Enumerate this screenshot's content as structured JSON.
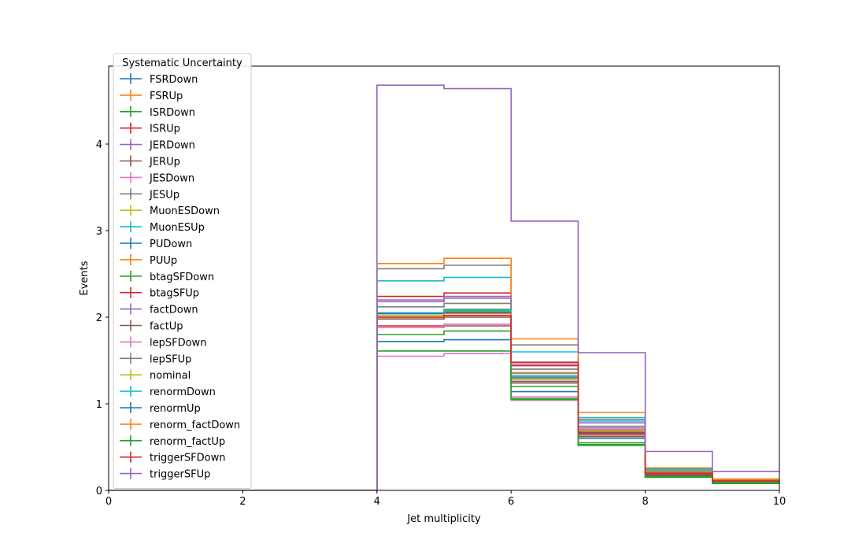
{
  "chart_data": {
    "type": "line",
    "style": "step-histogram",
    "xlabel": "Jet multiplicity",
    "ylabel": "Events",
    "xlim": [
      0,
      10
    ],
    "ylim": [
      0,
      4.9
    ],
    "xticks": [
      0,
      2,
      4,
      6,
      8,
      10
    ],
    "yticks": [
      0,
      1,
      2,
      3,
      4
    ],
    "bin_edges": [
      0,
      1,
      2,
      3,
      4,
      5,
      6,
      7,
      8,
      9,
      10
    ],
    "grid": false,
    "legend": {
      "title": "Systematic Uncertainty",
      "placement": "top-left"
    },
    "series": [
      {
        "name": "FSRDown",
        "color": "#1f77b4",
        "values": [
          0,
          0,
          0,
          0,
          1.72,
          1.74,
          1.14,
          0.6,
          0.17,
          0.1
        ]
      },
      {
        "name": "FSRUp",
        "color": "#ff7f0e",
        "values": [
          0,
          0,
          0,
          0,
          2.02,
          2.05,
          1.3,
          0.68,
          0.23,
          0.12
        ]
      },
      {
        "name": "ISRDown",
        "color": "#2ca02c",
        "values": [
          0,
          0,
          0,
          0,
          2.05,
          2.09,
          1.2,
          0.55,
          0.18,
          0.1
        ]
      },
      {
        "name": "ISRUp",
        "color": "#d62728",
        "values": [
          0,
          0,
          0,
          0,
          2.24,
          2.28,
          1.44,
          0.7,
          0.22,
          0.12
        ]
      },
      {
        "name": "JERDown",
        "color": "#9467bd",
        "values": [
          0,
          0,
          0,
          0,
          2.18,
          2.22,
          1.4,
          0.74,
          0.21,
          0.12
        ]
      },
      {
        "name": "JERUp",
        "color": "#8c564b",
        "values": [
          0,
          0,
          0,
          0,
          1.88,
          1.9,
          1.24,
          0.62,
          0.19,
          0.11
        ]
      },
      {
        "name": "JESDown",
        "color": "#e377c2",
        "values": [
          0,
          0,
          0,
          0,
          1.55,
          1.58,
          1.04,
          0.52,
          0.16,
          0.09
        ]
      },
      {
        "name": "JESUp",
        "color": "#7f7f7f",
        "values": [
          0,
          0,
          0,
          0,
          2.56,
          2.6,
          1.68,
          0.82,
          0.25,
          0.13
        ]
      },
      {
        "name": "MuonESDown",
        "color": "#bcbd22",
        "values": [
          0,
          0,
          0,
          0,
          2.02,
          2.07,
          1.32,
          0.68,
          0.2,
          0.11
        ]
      },
      {
        "name": "MuonESUp",
        "color": "#17becf",
        "values": [
          0,
          0,
          0,
          0,
          2.42,
          2.46,
          1.6,
          0.84,
          0.24,
          0.13
        ]
      },
      {
        "name": "PUDown",
        "color": "#1f77b4",
        "values": [
          0,
          0,
          0,
          0,
          2.05,
          2.06,
          1.32,
          0.7,
          0.2,
          0.11
        ]
      },
      {
        "name": "PUUp",
        "color": "#ff7f0e",
        "values": [
          0,
          0,
          0,
          0,
          2.62,
          2.68,
          1.75,
          0.9,
          0.26,
          0.13
        ]
      },
      {
        "name": "btagSFDown",
        "color": "#2ca02c",
        "values": [
          0,
          0,
          0,
          0,
          1.8,
          1.84,
          1.06,
          0.52,
          0.15,
          0.08
        ]
      },
      {
        "name": "btagSFUp",
        "color": "#d62728",
        "values": [
          0,
          0,
          0,
          0,
          1.9,
          1.92,
          1.35,
          0.64,
          0.18,
          0.1
        ]
      },
      {
        "name": "factDown",
        "color": "#9467bd",
        "values": [
          0,
          0,
          0,
          0,
          2.2,
          2.24,
          1.46,
          0.78,
          0.21,
          0.12
        ]
      },
      {
        "name": "factUp",
        "color": "#8c564b",
        "values": [
          0,
          0,
          0,
          0,
          1.98,
          2.0,
          1.26,
          0.64,
          0.19,
          0.1
        ]
      },
      {
        "name": "lepSFDown",
        "color": "#e377c2",
        "values": [
          0,
          0,
          0,
          0,
          1.88,
          1.92,
          1.08,
          0.7,
          0.2,
          0.11
        ]
      },
      {
        "name": "lepSFUp",
        "color": "#7f7f7f",
        "values": [
          0,
          0,
          0,
          0,
          2.12,
          2.16,
          1.4,
          0.72,
          0.21,
          0.12
        ]
      },
      {
        "name": "nominal",
        "color": "#bcbd22",
        "values": [
          0,
          0,
          0,
          0,
          2.0,
          2.02,
          1.28,
          0.66,
          0.2,
          0.11
        ]
      },
      {
        "name": "renormDown",
        "color": "#17becf",
        "values": [
          0,
          0,
          0,
          0,
          2.05,
          2.08,
          1.35,
          0.8,
          0.22,
          0.12
        ]
      },
      {
        "name": "renormUp",
        "color": "#1f77b4",
        "values": [
          0,
          0,
          0,
          0,
          2.04,
          2.05,
          1.3,
          0.67,
          0.2,
          0.11
        ]
      },
      {
        "name": "renorm_factDown",
        "color": "#ff7f0e",
        "values": [
          0,
          0,
          0,
          0,
          2.0,
          2.04,
          1.36,
          0.69,
          0.21,
          0.12
        ]
      },
      {
        "name": "renorm_factUp",
        "color": "#2ca02c",
        "values": [
          0,
          0,
          0,
          0,
          1.61,
          1.61,
          1.05,
          0.53,
          0.16,
          0.09
        ]
      },
      {
        "name": "triggerSFDown",
        "color": "#d62728",
        "values": [
          0,
          0,
          0,
          0,
          2.0,
          2.02,
          1.48,
          0.66,
          0.2,
          0.11
        ]
      },
      {
        "name": "triggerSFUp",
        "color": "#9467bd",
        "values": [
          0,
          0,
          0,
          0,
          4.68,
          4.64,
          3.11,
          1.59,
          0.45,
          0.22
        ]
      }
    ]
  }
}
